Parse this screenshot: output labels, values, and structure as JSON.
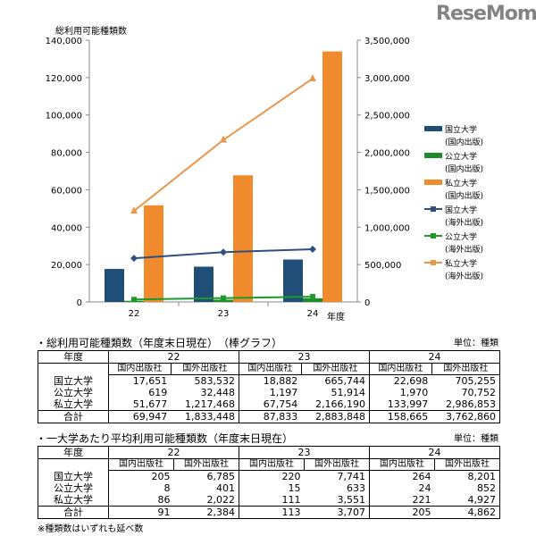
{
  "chart_data": {
    "type": "bar+line",
    "title": "総利用可能種類数",
    "xlabel": "年度",
    "categories": [
      "22",
      "23",
      "24"
    ],
    "y_left": {
      "range": [
        0,
        140000
      ],
      "ticks": [
        "0",
        "20,000",
        "40,000",
        "60,000",
        "80,000",
        "100,000",
        "120,000",
        "140,000"
      ]
    },
    "y_right": {
      "range": [
        0,
        3500000
      ],
      "ticks": [
        "0",
        "500,000",
        "1,000,000",
        "1,500,000",
        "2,000,000",
        "2,500,000",
        "3,000,000",
        "3,500,000"
      ]
    },
    "bar_series": [
      {
        "name": "国立大学",
        "name2": "(国内出版)",
        "color": "#1f4e79",
        "values": [
          17651,
          18882,
          22698
        ]
      },
      {
        "name": "公立大学",
        "name2": "(国内出版)",
        "color": "#1e8c2a",
        "values": [
          619,
          1197,
          1970
        ]
      },
      {
        "name": "私立大学",
        "name2": "(国内出版)",
        "color": "#f08a2c",
        "values": [
          51677,
          67754,
          133997
        ]
      }
    ],
    "line_series": [
      {
        "name": "国立大学",
        "name2": "(海外出版)",
        "color": "#2e4f82",
        "marker": "diamond",
        "values": [
          583532,
          665744,
          705255
        ]
      },
      {
        "name": "公立大学",
        "name2": "(海外出版)",
        "color": "#1e9a2a",
        "marker": "square",
        "values": [
          32448,
          51914,
          70752
        ]
      },
      {
        "name": "私立大学",
        "name2": "(海外出版)",
        "color": "#e8974e",
        "marker": "triangle",
        "values": [
          1217468,
          2166190,
          2986853
        ]
      }
    ],
    "grid": false,
    "legend": "right"
  },
  "table1": {
    "title": "・総利用可能種類数（年度末日現在）　（棒グラフ）",
    "unit": "単位：種類",
    "year_label": "年度",
    "years": [
      "22",
      "23",
      "24"
    ],
    "sub": [
      "国内出版社",
      "国外出版社"
    ],
    "rows": [
      {
        "label": "国立大学",
        "values": [
          "17,651",
          "583,532",
          "18,882",
          "665,744",
          "22,698",
          "705,255"
        ]
      },
      {
        "label": "公立大学",
        "values": [
          "619",
          "32,448",
          "1,197",
          "51,914",
          "1,970",
          "70,752"
        ]
      },
      {
        "label": "私立大学",
        "values": [
          "51,677",
          "1,217,468",
          "67,754",
          "2,166,190",
          "133,997",
          "2,986,853"
        ]
      },
      {
        "label": "合計",
        "values": [
          "69,947",
          "1,833,448",
          "87,833",
          "2,883,848",
          "158,665",
          "3,762,860"
        ]
      }
    ]
  },
  "table2": {
    "title": "・一大学あたり平均利用可能種類数（年度末日現在）",
    "unit": "単位：種類",
    "year_label": "年度",
    "years": [
      "22",
      "23",
      "24"
    ],
    "sub": [
      "国内出版社",
      "国外出版社"
    ],
    "rows": [
      {
        "label": "国立大学",
        "values": [
          "205",
          "6,785",
          "220",
          "7,741",
          "264",
          "8,201"
        ]
      },
      {
        "label": "公立大学",
        "values": [
          "8",
          "401",
          "15",
          "633",
          "24",
          "852"
        ]
      },
      {
        "label": "私立大学",
        "values": [
          "86",
          "2,022",
          "111",
          "3,551",
          "221",
          "4,927"
        ]
      },
      {
        "label": "合計",
        "values": [
          "91",
          "2,384",
          "113",
          "3,707",
          "205",
          "4,862"
        ]
      }
    ]
  },
  "footnote": "※種類数はいずれも延べ数",
  "watermark": "ReseMom"
}
